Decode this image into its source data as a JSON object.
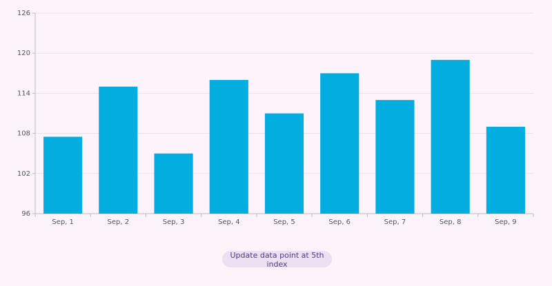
{
  "chart_data": {
    "type": "bar",
    "categories": [
      "Sep, 1",
      "Sep, 2",
      "Sep, 3",
      "Sep, 4",
      "Sep, 5",
      "Sep, 6",
      "Sep, 7",
      "Sep, 8",
      "Sep, 9"
    ],
    "values": [
      107.5,
      115,
      105,
      116,
      111,
      117,
      113,
      119,
      109
    ],
    "color": "#04ade0",
    "ylim": [
      96,
      126
    ],
    "yticks": [
      96,
      102,
      108,
      114,
      120,
      126
    ],
    "grid": true
  },
  "button": {
    "label": "Update data point at 5th index"
  }
}
